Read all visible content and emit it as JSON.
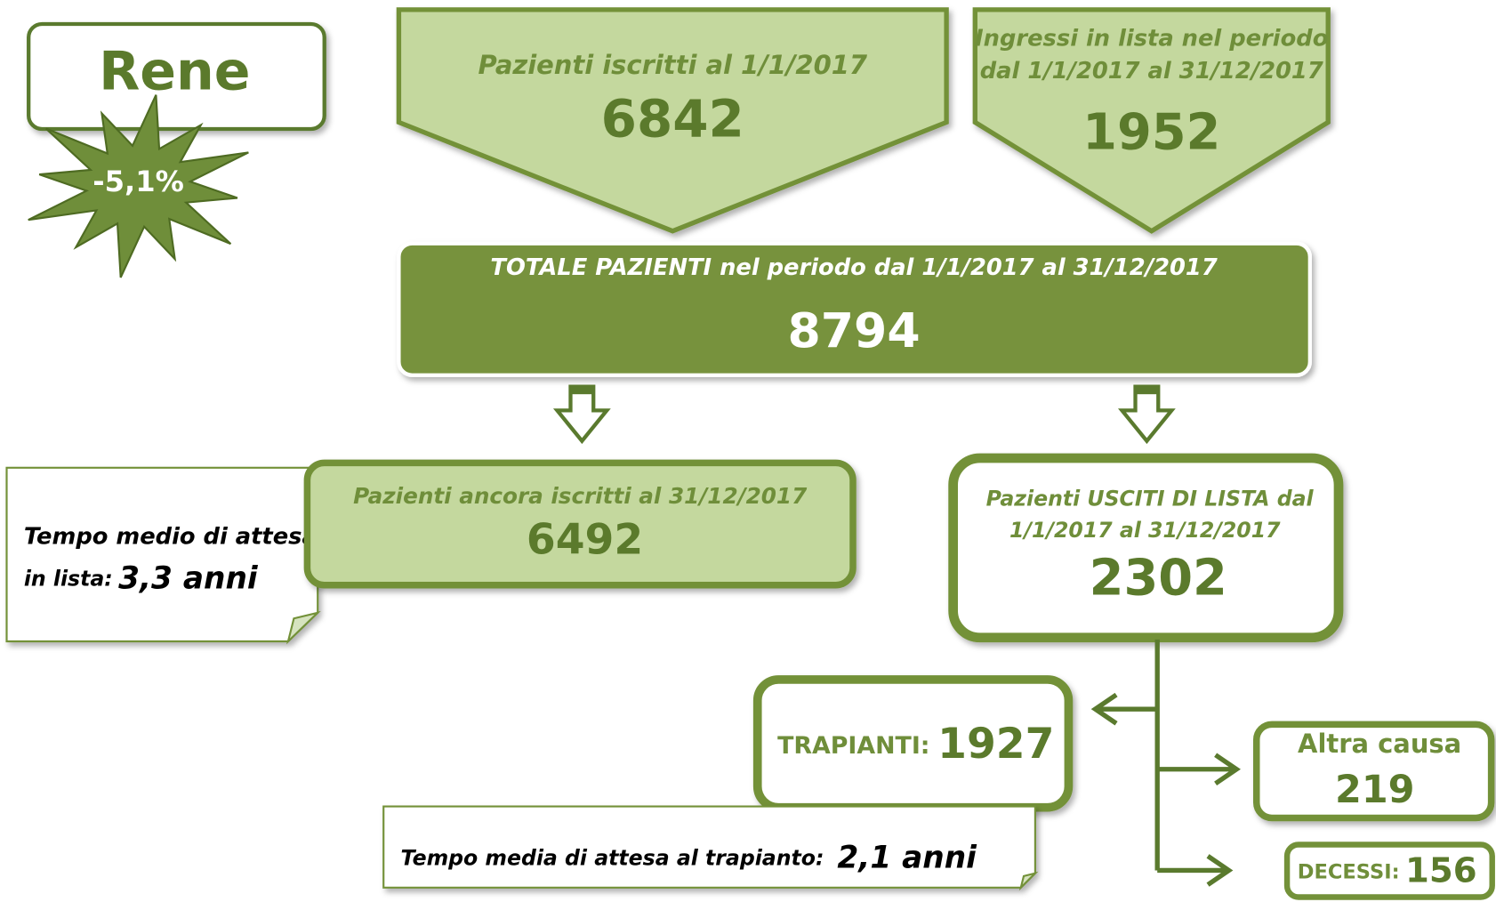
{
  "title": "Rene",
  "badge": "-5,1%",
  "nodes": [
    {
      "label": [
        "Pazienti iscritti al 1/1/2017"
      ],
      "value": 6842
    },
    {
      "label": [
        "Ingressi in lista nel periodo",
        "dal 1/1/2017 al 31/12/2017"
      ],
      "value": 1952
    },
    {
      "label": [
        "TOTALE PAZIENTI nel periodo dal 1/1/2017 al 31/12/2017"
      ],
      "value": 8794
    },
    {
      "label": [
        "Pazienti ancora iscritti al 31/12/2017"
      ],
      "value": 6492
    },
    {
      "label": [
        "Pazienti USCITI DI LISTA dal",
        "1/1/2017 al 31/12/2017"
      ],
      "value": 2302
    },
    {
      "label": [
        "TRAPIANTI:"
      ],
      "value": 1927
    },
    {
      "label": [
        "Altra causa"
      ],
      "value": 219
    },
    {
      "label": [
        "DECESSI:"
      ],
      "value": 156
    }
  ],
  "notes": [
    {
      "label": [
        "Tempo medio di attesa",
        "in lista:"
      ],
      "value": "3,3 anni"
    },
    {
      "label": [
        "Tempo media di attesa al trapianto:"
      ],
      "value": "2,1 anni"
    }
  ]
}
